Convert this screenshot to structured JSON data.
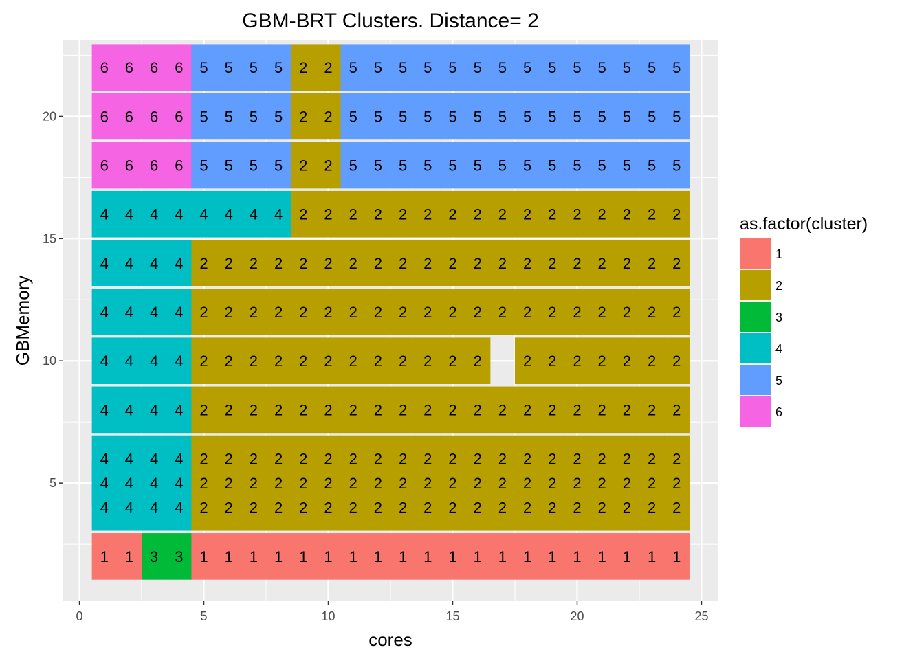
{
  "chart_data": {
    "type": "heatmap",
    "title": "GBM-BRT Clusters. Distance= 2",
    "xlabel": "cores",
    "ylabel": "GBMemory",
    "xlim": [
      -0.65,
      25.65
    ],
    "ylim": [
      0.17,
      23.13
    ],
    "xticks": [
      0,
      5,
      10,
      15,
      20,
      25
    ],
    "yticks": [
      5,
      10,
      15,
      20
    ],
    "x_minor_ticks": [
      2.5,
      7.5,
      12.5,
      17.5,
      22.5
    ],
    "y_minor_ticks": [
      2.5,
      7.5,
      12.5,
      17.5,
      22.5
    ],
    "x": [
      1,
      2,
      3,
      4,
      5,
      6,
      7,
      8,
      9,
      10,
      11,
      12,
      13,
      14,
      15,
      16,
      17,
      18,
      19,
      20,
      21,
      22,
      23,
      24
    ],
    "y": [
      2,
      4,
      5,
      6,
      8,
      10,
      12,
      14,
      16,
      18,
      20,
      22
    ],
    "clusters": [
      [
        1,
        1,
        3,
        3,
        1,
        1,
        1,
        1,
        1,
        1,
        1,
        1,
        1,
        1,
        1,
        1,
        1,
        1,
        1,
        1,
        1,
        1,
        1,
        1
      ],
      [
        4,
        4,
        4,
        4,
        2,
        2,
        2,
        2,
        2,
        2,
        2,
        2,
        2,
        2,
        2,
        2,
        2,
        2,
        2,
        2,
        2,
        2,
        2,
        2
      ],
      [
        4,
        4,
        4,
        4,
        2,
        2,
        2,
        2,
        2,
        2,
        2,
        2,
        2,
        2,
        2,
        2,
        2,
        2,
        2,
        2,
        2,
        2,
        2,
        2
      ],
      [
        4,
        4,
        4,
        4,
        2,
        2,
        2,
        2,
        2,
        2,
        2,
        2,
        2,
        2,
        2,
        2,
        2,
        2,
        2,
        2,
        2,
        2,
        2,
        2
      ],
      [
        4,
        4,
        4,
        4,
        2,
        2,
        2,
        2,
        2,
        2,
        2,
        2,
        2,
        2,
        2,
        2,
        2,
        2,
        2,
        2,
        2,
        2,
        2,
        2
      ],
      [
        4,
        4,
        4,
        4,
        2,
        2,
        2,
        2,
        2,
        2,
        2,
        2,
        2,
        2,
        2,
        2,
        null,
        2,
        2,
        2,
        2,
        2,
        2,
        2
      ],
      [
        4,
        4,
        4,
        4,
        2,
        2,
        2,
        2,
        2,
        2,
        2,
        2,
        2,
        2,
        2,
        2,
        2,
        2,
        2,
        2,
        2,
        2,
        2,
        2
      ],
      [
        4,
        4,
        4,
        4,
        2,
        2,
        2,
        2,
        2,
        2,
        2,
        2,
        2,
        2,
        2,
        2,
        2,
        2,
        2,
        2,
        2,
        2,
        2,
        2
      ],
      [
        4,
        4,
        4,
        4,
        4,
        4,
        4,
        4,
        2,
        2,
        2,
        2,
        2,
        2,
        2,
        2,
        2,
        2,
        2,
        2,
        2,
        2,
        2,
        2
      ],
      [
        6,
        6,
        6,
        6,
        5,
        5,
        5,
        5,
        2,
        2,
        5,
        5,
        5,
        5,
        5,
        5,
        5,
        5,
        5,
        5,
        5,
        5,
        5,
        5
      ],
      [
        6,
        6,
        6,
        6,
        5,
        5,
        5,
        5,
        2,
        2,
        5,
        5,
        5,
        5,
        5,
        5,
        5,
        5,
        5,
        5,
        5,
        5,
        5,
        5
      ],
      [
        6,
        6,
        6,
        6,
        5,
        5,
        5,
        5,
        2,
        2,
        5,
        5,
        5,
        5,
        5,
        5,
        5,
        5,
        5,
        5,
        5,
        5,
        5,
        5
      ]
    ],
    "legend": {
      "title": "as.factor(cluster)",
      "position": "right",
      "entries": [
        {
          "label": "1",
          "color": "#F8766D"
        },
        {
          "label": "2",
          "color": "#B79F00"
        },
        {
          "label": "3",
          "color": "#00BA38"
        },
        {
          "label": "4",
          "color": "#00BFC4"
        },
        {
          "label": "5",
          "color": "#619CFF"
        },
        {
          "label": "6",
          "color": "#F564E3"
        }
      ]
    },
    "grid": true,
    "panel_background": "#EBEBEB",
    "grid_color": "#FFFFFF"
  }
}
